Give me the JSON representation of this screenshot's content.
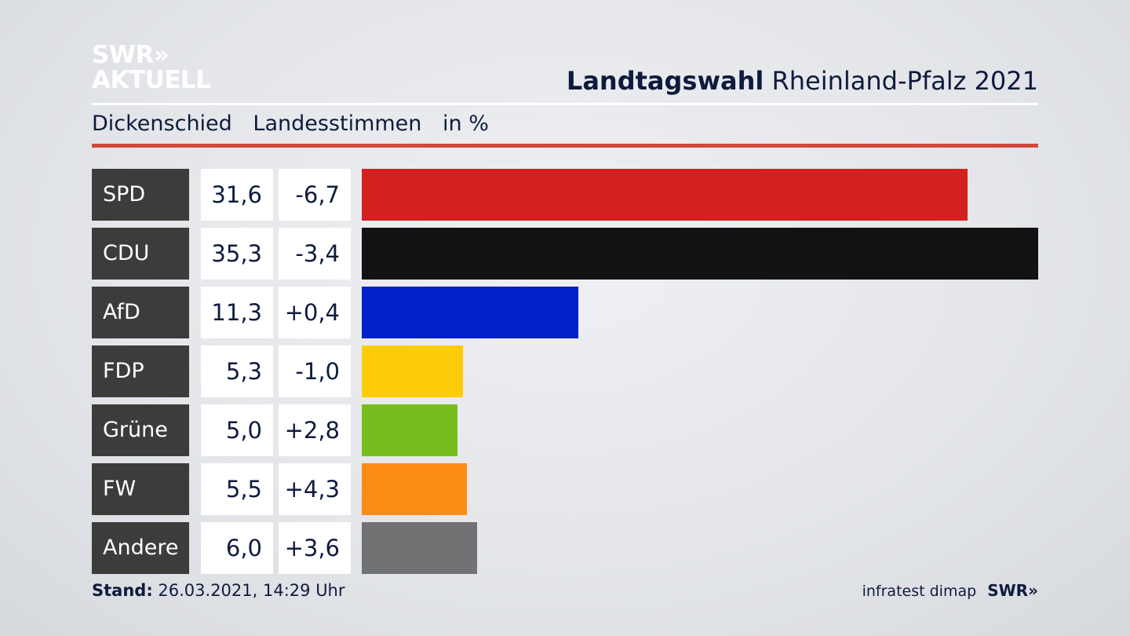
{
  "logo": {
    "line1": "SWR»",
    "line2": "AKTUELL"
  },
  "header": {
    "title_bold": "Landtagswahl",
    "title_rest": "Rheinland-Pfalz 2021"
  },
  "subheader": {
    "place": "Dickenschied",
    "kind": "Landesstimmen",
    "unit": "in %"
  },
  "colors": {
    "accent_rule": "#d04a3c",
    "label_bg": "#3c3c3b"
  },
  "chart_data": {
    "type": "bar",
    "orientation": "horizontal",
    "categories": [
      "SPD",
      "CDU",
      "AfD",
      "FDP",
      "Grüne",
      "FW",
      "Andere"
    ],
    "values": [
      31.6,
      35.3,
      11.3,
      5.3,
      5.0,
      5.5,
      6.0
    ],
    "value_labels": [
      "31,6",
      "35,3",
      "11,3",
      "5,3",
      "5,0",
      "5,5",
      "6,0"
    ],
    "change_labels": [
      "-6,7",
      "-3,4",
      "+0,4",
      "-1,0",
      "+2,8",
      "+4,3",
      "+3,6"
    ],
    "changes": [
      -6.7,
      -3.4,
      0.4,
      -1.0,
      2.8,
      4.3,
      3.6
    ],
    "bar_colors": [
      "#d52020",
      "#121212",
      "#0020c8",
      "#fdcc09",
      "#78bd1e",
      "#fd8c16",
      "#717274"
    ],
    "xlim": [
      0,
      35.3
    ]
  },
  "footer": {
    "stand_label": "Stand:",
    "stand_value": "26.03.2021, 14:29 Uhr",
    "source": "infratest dimap",
    "brand": "SWR»"
  }
}
